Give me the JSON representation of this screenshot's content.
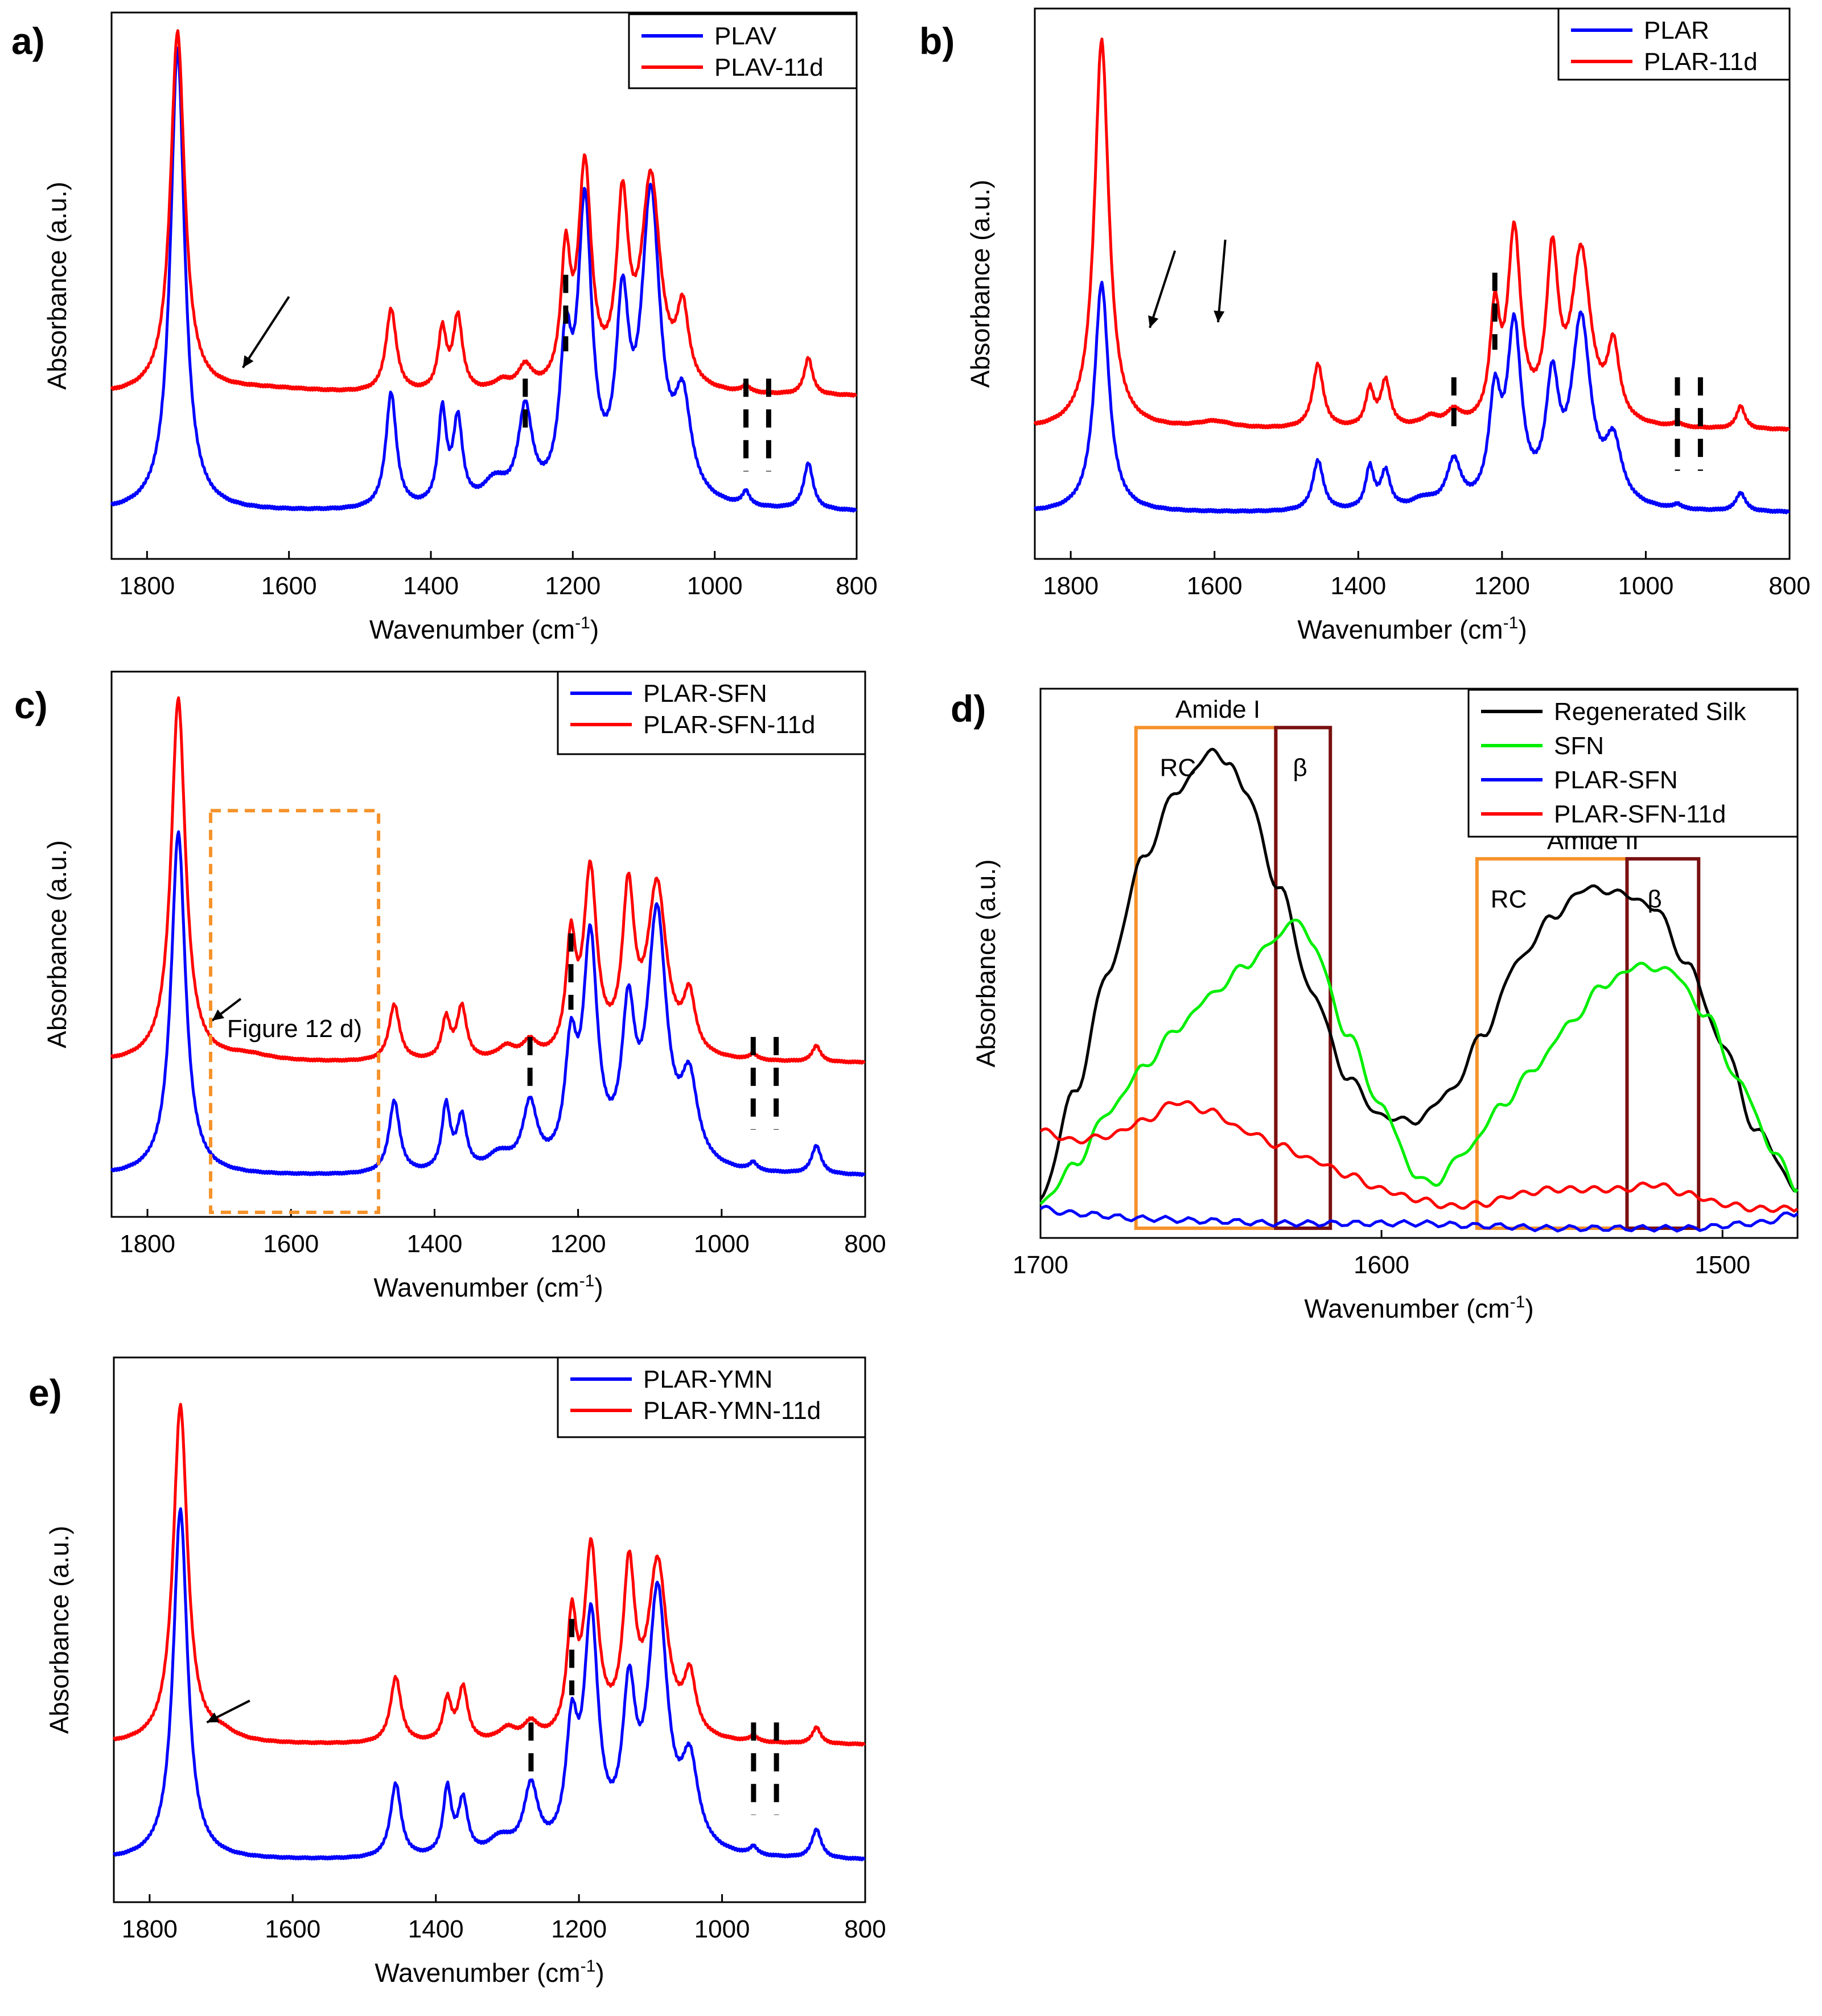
{
  "panels": [
    {
      "label": "a)",
      "xlabel": "Wavenumber (cm",
      "xlabel_sup": "-1",
      "xlabel_end": ")",
      "ylabel": "Absorbance (a.u.)",
      "legend": [
        "PLAV",
        "PLAV-11d"
      ]
    },
    {
      "label": "b)",
      "xlabel": "Wavenumber (cm",
      "xlabel_sup": "-1",
      "xlabel_end": ")",
      "ylabel": "Absorbance (a.u.)",
      "legend": [
        "PLAR",
        "PLAR-11d"
      ]
    },
    {
      "label": "c)",
      "xlabel": "Wavenumber (cm",
      "xlabel_sup": "-1",
      "xlabel_end": ")",
      "ylabel": "Absorbance (a.u.)",
      "legend": [
        "PLAR-SFN",
        "PLAR-SFN-11d"
      ],
      "box_label": "Figure 12 d)"
    },
    {
      "label": "d)",
      "xlabel": "Wavenumber (cm",
      "xlabel_sup": "-1",
      "xlabel_end": ")",
      "ylabel": "Absorbance (a.u.)",
      "legend": [
        "Regenerated Silk",
        "SFN",
        "PLAR-SFN",
        "PLAR-SFN-11d"
      ],
      "annotations": {
        "amide1": "Amide I",
        "amide2": "Amide II",
        "rc": "RC",
        "beta": "β"
      }
    },
    {
      "label": "e)",
      "xlabel": "Wavenumber (cm",
      "xlabel_sup": "-1",
      "xlabel_end": ")",
      "ylabel": "Absorbance (a.u.)",
      "legend": [
        "PLAR-YMN",
        "PLAR-YMN-11d"
      ]
    }
  ],
  "colors": {
    "blue": "#0000ff",
    "red": "#ff0000",
    "black": "#000000",
    "green": "#00ee00",
    "orange": "#f5922a",
    "darkred": "#7a1010"
  },
  "chart_data": [
    {
      "type": "line",
      "panel": "a)",
      "xlim": [
        1850,
        800
      ],
      "xticks": [
        1800,
        1600,
        1400,
        1200,
        1000,
        800
      ],
      "series": [
        {
          "name": "PLAV",
          "color": "blue",
          "baseline": 0.1,
          "peaks": [
            [
              1757,
              1.0,
              12
            ],
            [
              1456,
              0.25,
              9
            ],
            [
              1384,
              0.2,
              7
            ],
            [
              1362,
              0.18,
              8
            ],
            [
              1310,
              0.05,
              20
            ],
            [
              1267,
              0.2,
              12
            ],
            [
              1210,
              0.3,
              10
            ],
            [
              1183,
              0.62,
              12
            ],
            [
              1130,
              0.38,
              11
            ],
            [
              1090,
              0.65,
              16
            ],
            [
              1045,
              0.2,
              14
            ],
            [
              956,
              0.03,
              6
            ],
            [
              868,
              0.1,
              8
            ]
          ]
        },
        {
          "name": "PLAV-11d",
          "color": "red",
          "baseline": 0.35,
          "peaks": [
            [
              1757,
              0.78,
              12
            ],
            [
              1640,
              0.015,
              120
            ],
            [
              1456,
              0.18,
              9
            ],
            [
              1384,
              0.13,
              7
            ],
            [
              1362,
              0.16,
              8
            ],
            [
              1300,
              0.02,
              15
            ],
            [
              1267,
              0.05,
              12
            ],
            [
              1210,
              0.27,
              8
            ],
            [
              1183,
              0.47,
              11
            ],
            [
              1130,
              0.38,
              10
            ],
            [
              1090,
              0.45,
              16
            ],
            [
              1045,
              0.16,
              10
            ],
            [
              956,
              0.015,
              6
            ],
            [
              868,
              0.08,
              7
            ]
          ]
        }
      ]
    },
    {
      "type": "line",
      "panel": "b)",
      "xlim": [
        1850,
        800
      ],
      "xticks": [
        1800,
        1600,
        1400,
        1200,
        1000,
        800
      ],
      "series": [
        {
          "name": "PLAR",
          "color": "blue",
          "baseline": 0.1,
          "peaks": [
            [
              1757,
              0.5,
              12
            ],
            [
              1456,
              0.11,
              9
            ],
            [
              1384,
              0.09,
              7
            ],
            [
              1362,
              0.08,
              8
            ],
            [
              1310,
              0.02,
              20
            ],
            [
              1267,
              0.1,
              12
            ],
            [
              1210,
              0.22,
              10
            ],
            [
              1183,
              0.38,
              12
            ],
            [
              1130,
              0.25,
              11
            ],
            [
              1090,
              0.4,
              16
            ],
            [
              1045,
              0.13,
              14
            ],
            [
              956,
              0.01,
              6
            ],
            [
              868,
              0.04,
              8
            ]
          ]
        },
        {
          "name": "PLAR-11d",
          "color": "red",
          "baseline": 0.28,
          "peaks": [
            [
              1757,
              0.85,
              12
            ],
            [
              1600,
              0.015,
              30
            ],
            [
              1456,
              0.14,
              9
            ],
            [
              1384,
              0.08,
              7
            ],
            [
              1362,
              0.1,
              8
            ],
            [
              1300,
              0.02,
              15
            ],
            [
              1267,
              0.03,
              12
            ],
            [
              1210,
              0.23,
              8
            ],
            [
              1183,
              0.41,
              11
            ],
            [
              1130,
              0.35,
              10
            ],
            [
              1090,
              0.37,
              16
            ],
            [
              1045,
              0.16,
              10
            ],
            [
              956,
              0.01,
              6
            ],
            [
              868,
              0.05,
              7
            ]
          ]
        }
      ]
    },
    {
      "type": "line",
      "panel": "c)",
      "xlim": [
        1850,
        800
      ],
      "xticks": [
        1800,
        1600,
        1400,
        1200,
        1000,
        800
      ],
      "series": [
        {
          "name": "PLAR-SFN",
          "color": "blue",
          "baseline": 0.1,
          "peaks": [
            [
              1757,
              0.85,
              12
            ],
            [
              1456,
              0.18,
              9
            ],
            [
              1384,
              0.16,
              7
            ],
            [
              1362,
              0.13,
              8
            ],
            [
              1310,
              0.04,
              20
            ],
            [
              1267,
              0.16,
              12
            ],
            [
              1210,
              0.27,
              10
            ],
            [
              1183,
              0.55,
              12
            ],
            [
              1130,
              0.35,
              11
            ],
            [
              1090,
              0.62,
              16
            ],
            [
              1045,
              0.2,
              14
            ],
            [
              956,
              0.02,
              6
            ],
            [
              868,
              0.07,
              8
            ]
          ]
        },
        {
          "name": "PLAR-SFN-11d",
          "color": "red",
          "baseline": 0.38,
          "peaks": [
            [
              1757,
              0.9,
              12
            ],
            [
              1660,
              0.015,
              40
            ],
            [
              1456,
              0.14,
              9
            ],
            [
              1384,
              0.1,
              7
            ],
            [
              1362,
              0.13,
              8
            ],
            [
              1300,
              0.03,
              15
            ],
            [
              1267,
              0.04,
              12
            ],
            [
              1210,
              0.27,
              8
            ],
            [
              1183,
              0.45,
              11
            ],
            [
              1130,
              0.39,
              10
            ],
            [
              1090,
              0.42,
              16
            ],
            [
              1045,
              0.14,
              10
            ],
            [
              956,
              0.015,
              6
            ],
            [
              868,
              0.04,
              7
            ]
          ]
        }
      ]
    },
    {
      "type": "line",
      "panel": "d)",
      "xlim": [
        1700,
        1478
      ],
      "xticks": [
        1700,
        1600,
        1500
      ],
      "series": [
        {
          "name": "Regenerated Silk",
          "color": "black",
          "points": [
            [
              1700,
              0.08
            ],
            [
              1690,
              0.3
            ],
            [
              1680,
              0.55
            ],
            [
              1670,
              0.78
            ],
            [
              1660,
              0.92
            ],
            [
              1650,
              1.0
            ],
            [
              1645,
              0.98
            ],
            [
              1640,
              0.92
            ],
            [
              1630,
              0.72
            ],
            [
              1620,
              0.5
            ],
            [
              1610,
              0.33
            ],
            [
              1600,
              0.25
            ],
            [
              1590,
              0.24
            ],
            [
              1580,
              0.3
            ],
            [
              1570,
              0.42
            ],
            [
              1560,
              0.57
            ],
            [
              1550,
              0.66
            ],
            [
              1540,
              0.72
            ],
            [
              1530,
              0.71
            ],
            [
              1520,
              0.68
            ],
            [
              1510,
              0.56
            ],
            [
              1500,
              0.4
            ],
            [
              1490,
              0.22
            ],
            [
              1478,
              0.1
            ]
          ]
        },
        {
          "name": "SFN",
          "color": "green",
          "points": [
            [
              1700,
              0.07
            ],
            [
              1690,
              0.15
            ],
            [
              1680,
              0.26
            ],
            [
              1670,
              0.35
            ],
            [
              1660,
              0.43
            ],
            [
              1650,
              0.5
            ],
            [
              1640,
              0.56
            ],
            [
              1630,
              0.62
            ],
            [
              1625,
              0.66
            ],
            [
              1620,
              0.6
            ],
            [
              1610,
              0.42
            ],
            [
              1600,
              0.27
            ],
            [
              1590,
              0.13
            ],
            [
              1585,
              0.11
            ],
            [
              1575,
              0.18
            ],
            [
              1565,
              0.27
            ],
            [
              1555,
              0.35
            ],
            [
              1545,
              0.44
            ],
            [
              1535,
              0.52
            ],
            [
              1525,
              0.56
            ],
            [
              1515,
              0.55
            ],
            [
              1505,
              0.46
            ],
            [
              1495,
              0.32
            ],
            [
              1485,
              0.18
            ],
            [
              1478,
              0.1
            ]
          ]
        },
        {
          "name": "PLAR-SFN",
          "color": "blue",
          "points": [
            [
              1700,
              0.06
            ],
            [
              1690,
              0.05
            ],
            [
              1670,
              0.04
            ],
            [
              1650,
              0.035
            ],
            [
              1630,
              0.03
            ],
            [
              1610,
              0.03
            ],
            [
              1590,
              0.03
            ],
            [
              1570,
              0.025
            ],
            [
              1550,
              0.02
            ],
            [
              1530,
              0.02
            ],
            [
              1510,
              0.02
            ],
            [
              1490,
              0.03
            ],
            [
              1478,
              0.05
            ]
          ]
        },
        {
          "name": "PLAR-SFN-11d",
          "color": "red",
          "points": [
            [
              1700,
              0.22
            ],
            [
              1690,
              0.2
            ],
            [
              1680,
              0.21
            ],
            [
              1670,
              0.24
            ],
            [
              1660,
              0.28
            ],
            [
              1650,
              0.26
            ],
            [
              1640,
              0.22
            ],
            [
              1630,
              0.19
            ],
            [
              1620,
              0.16
            ],
            [
              1610,
              0.13
            ],
            [
              1600,
              0.1
            ],
            [
              1590,
              0.08
            ],
            [
              1580,
              0.065
            ],
            [
              1570,
              0.07
            ],
            [
              1560,
              0.09
            ],
            [
              1550,
              0.1
            ],
            [
              1540,
              0.1
            ],
            [
              1530,
              0.1
            ],
            [
              1520,
              0.11
            ],
            [
              1510,
              0.09
            ],
            [
              1500,
              0.07
            ],
            [
              1490,
              0.06
            ],
            [
              1478,
              0.06
            ]
          ]
        }
      ]
    },
    {
      "type": "line",
      "panel": "e)",
      "xlim": [
        1850,
        800
      ],
      "xticks": [
        1800,
        1600,
        1400,
        1200,
        1000,
        800
      ],
      "series": [
        {
          "name": "PLAR-YMN",
          "color": "blue",
          "baseline": 0.1,
          "peaks": [
            [
              1757,
              0.85,
              12
            ],
            [
              1456,
              0.18,
              9
            ],
            [
              1384,
              0.16,
              7
            ],
            [
              1362,
              0.13,
              8
            ],
            [
              1310,
              0.04,
              20
            ],
            [
              1267,
              0.16,
              12
            ],
            [
              1210,
              0.27,
              10
            ],
            [
              1183,
              0.55,
              12
            ],
            [
              1130,
              0.35,
              11
            ],
            [
              1090,
              0.62,
              16
            ],
            [
              1045,
              0.2,
              14
            ],
            [
              956,
              0.02,
              6
            ],
            [
              868,
              0.07,
              8
            ]
          ]
        },
        {
          "name": "PLAR-YMN-11d",
          "color": "red",
          "baseline": 0.38,
          "peaks": [
            [
              1757,
              0.82,
              12
            ],
            [
              1700,
              0.02,
              25
            ],
            [
              1456,
              0.16,
              9
            ],
            [
              1384,
              0.1,
              7
            ],
            [
              1362,
              0.13,
              8
            ],
            [
              1300,
              0.03,
              15
            ],
            [
              1267,
              0.04,
              12
            ],
            [
              1210,
              0.27,
              8
            ],
            [
              1183,
              0.45,
              11
            ],
            [
              1130,
              0.39,
              10
            ],
            [
              1090,
              0.42,
              16
            ],
            [
              1045,
              0.14,
              10
            ],
            [
              956,
              0.015,
              6
            ],
            [
              868,
              0.04,
              7
            ]
          ]
        }
      ]
    }
  ]
}
